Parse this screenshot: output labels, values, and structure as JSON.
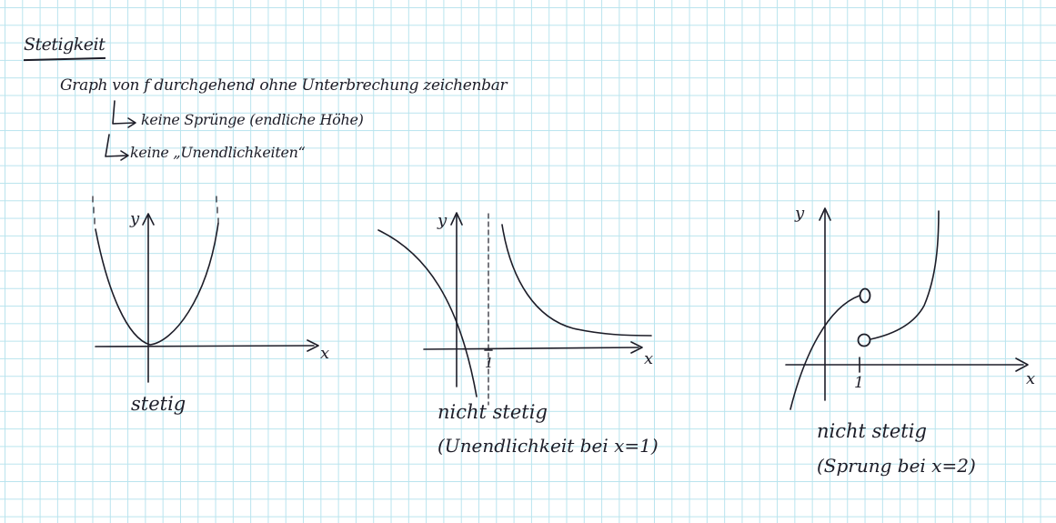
{
  "notes": {
    "title": "Stetigkeit",
    "definition": "Graph von f durchgehend ohne Unterbrechung zeichenbar",
    "bullet_1": "keine Sprünge (endliche Höhe)",
    "bullet_2": "keine „Unendlichkeiten“"
  },
  "graphs": [
    {
      "x_axis": "x",
      "y_axis": "y",
      "caption": "stetig"
    },
    {
      "x_axis": "x",
      "y_axis": "y",
      "tick": "1",
      "caption": "nicht stetig",
      "reason": "(Unendlichkeit bei x=1)"
    },
    {
      "x_axis": "x",
      "y_axis": "y",
      "tick": "1",
      "caption": "nicht stetig",
      "reason": "(Sprung bei x=2)"
    }
  ],
  "colors": {
    "ink": "#1d1d28",
    "grid": "#b9e4ee",
    "paper": "#ffffff"
  }
}
